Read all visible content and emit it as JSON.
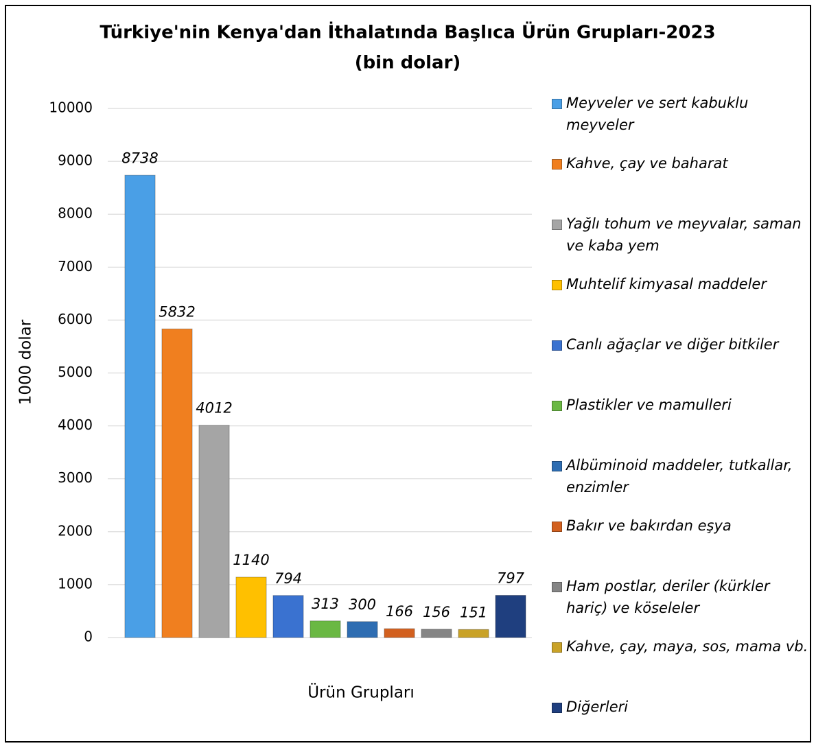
{
  "chart_data": {
    "type": "bar",
    "title": "Türkiye'nin Kenya'dan İthalatında Başlıca Ürün Grupları-2023",
    "subtitle": "(bin dolar)",
    "x_label": "Ürün Grupları",
    "y_label": "1000 dolar",
    "categories": [
      "Meyveler ve sert kabuklu meyveler",
      "Kahve, çay ve baharat",
      "Yağlı tohum ve meyvalar, saman ve kaba yem",
      "Muhtelif kimyasal maddeler",
      "Canlı ağaçlar ve diğer bitkiler",
      "Plastikler ve mamulleri",
      "Albüminoid maddeler, tutkallar, enzimler",
      "Bakır ve bakırdan eşya",
      "Ham postlar, deriler (kürkler hariç) ve köseleler",
      "Kahve, çay, maya, sos, mama vb.",
      "Diğerleri"
    ],
    "values": [
      8738,
      5832,
      4012,
      1140,
      794,
      313,
      300,
      166,
      156,
      151,
      797
    ],
    "colors": [
      "#4a9fe6",
      "#f07f1f",
      "#a5a5a5",
      "#ffc000",
      "#3a72d0",
      "#6ab843",
      "#2e6db2",
      "#d2601f",
      "#858585",
      "#c9a227",
      "#1f3f7f"
    ],
    "ylim": [
      0,
      10000
    ],
    "yticks": [
      0,
      1000,
      2000,
      3000,
      4000,
      5000,
      6000,
      7000,
      8000,
      9000,
      10000
    ],
    "grid": true,
    "legend": "right"
  }
}
